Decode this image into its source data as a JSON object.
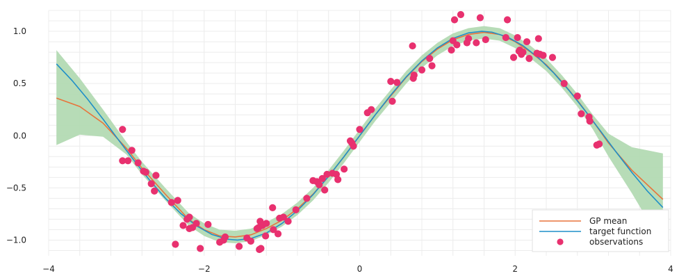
{
  "chart_data": {
    "type": "line",
    "title": "",
    "xlabel": "",
    "ylabel": "",
    "xlim": [
      -4,
      4
    ],
    "ylim": [
      -1.15,
      1.2
    ],
    "x_ticks": [
      -4,
      -2,
      0,
      2,
      4
    ],
    "x_tick_labels": [
      "−4",
      "−2",
      "0",
      "2",
      "4"
    ],
    "y_ticks": [
      -1.0,
      -0.5,
      0.0,
      0.5,
      1.0
    ],
    "y_tick_labels": [
      "−1.0",
      "−0.5",
      "0.0",
      "0.5",
      "1.0"
    ],
    "grid": true,
    "legend_position": "bottom-right",
    "colors": {
      "gp_mean": "#e8743b",
      "target": "#1f8fc8",
      "band": "#b3dab3",
      "observations": "#e8316f"
    },
    "legend": [
      {
        "label": "GP mean",
        "kind": "line",
        "color": "#e8743b"
      },
      {
        "label": "target function",
        "kind": "line",
        "color": "#1f8fc8"
      },
      {
        "label": "observations",
        "kind": "marker",
        "color": "#e8316f"
      }
    ],
    "series": [
      {
        "name": "GP mean",
        "type": "line",
        "x": [
          -3.9,
          -3.6,
          -3.3,
          -3.0,
          -2.8,
          -2.5,
          -2.2,
          -2.0,
          -1.8,
          -1.6,
          -1.4,
          -1.2,
          -1.0,
          -0.8,
          -0.6,
          -0.4,
          -0.2,
          0.0,
          0.2,
          0.4,
          0.6,
          0.8,
          1.0,
          1.2,
          1.4,
          1.6,
          1.8,
          2.0,
          2.2,
          2.4,
          2.6,
          2.8,
          3.0,
          3.2,
          3.5,
          3.9
        ],
        "y": [
          0.36,
          0.28,
          0.12,
          -0.12,
          -0.31,
          -0.56,
          -0.8,
          -0.9,
          -0.96,
          -0.97,
          -0.95,
          -0.89,
          -0.81,
          -0.7,
          -0.56,
          -0.39,
          -0.2,
          0.0,
          0.2,
          0.38,
          0.56,
          0.71,
          0.83,
          0.92,
          0.97,
          0.99,
          0.97,
          0.9,
          0.8,
          0.68,
          0.52,
          0.34,
          0.14,
          -0.07,
          -0.33,
          -0.61
        ]
      },
      {
        "name": "target function",
        "type": "line",
        "x": [
          -3.9,
          -3.7,
          -3.5,
          -3.3,
          -3.1,
          -2.9,
          -2.7,
          -2.5,
          -2.3,
          -2.1,
          -1.9,
          -1.7,
          -1.5708,
          -1.4,
          -1.2,
          -1.0,
          -0.8,
          -0.6,
          -0.4,
          -0.2,
          0.0,
          0.2,
          0.4,
          0.6,
          0.8,
          1.0,
          1.2,
          1.4,
          1.5708,
          1.7,
          1.9,
          2.1,
          2.3,
          2.5,
          2.7,
          2.9,
          3.1,
          3.3,
          3.5,
          3.7,
          3.9
        ],
        "y": [
          0.688,
          0.53,
          0.351,
          0.158,
          -0.042,
          -0.239,
          -0.427,
          -0.598,
          -0.746,
          -0.863,
          -0.946,
          -0.992,
          -1.0,
          -0.985,
          -0.932,
          -0.841,
          -0.717,
          -0.565,
          -0.389,
          -0.199,
          0.0,
          0.199,
          0.389,
          0.565,
          0.717,
          0.841,
          0.932,
          0.985,
          1.0,
          0.992,
          0.946,
          0.863,
          0.746,
          0.598,
          0.427,
          0.239,
          0.042,
          -0.158,
          -0.351,
          -0.53,
          -0.688
        ]
      },
      {
        "name": "",
        "type": "band",
        "x": [
          -3.9,
          -3.6,
          -3.3,
          -3.0,
          -2.8,
          -2.5,
          -2.2,
          -2.0,
          -1.8,
          -1.6,
          -1.4,
          -1.2,
          -1.0,
          -0.8,
          -0.6,
          -0.4,
          -0.2,
          0.0,
          0.2,
          0.4,
          0.6,
          0.8,
          1.0,
          1.2,
          1.4,
          1.6,
          1.8,
          2.0,
          2.2,
          2.4,
          2.6,
          2.8,
          3.0,
          3.2,
          3.5,
          3.9
        ],
        "upper": [
          0.82,
          0.55,
          0.25,
          -0.06,
          -0.25,
          -0.5,
          -0.74,
          -0.84,
          -0.9,
          -0.91,
          -0.89,
          -0.83,
          -0.75,
          -0.64,
          -0.5,
          -0.33,
          -0.14,
          0.06,
          0.26,
          0.44,
          0.62,
          0.77,
          0.89,
          0.98,
          1.03,
          1.05,
          1.03,
          0.96,
          0.86,
          0.74,
          0.58,
          0.4,
          0.2,
          0.02,
          -0.11,
          -0.17
        ],
        "lower": [
          -0.09,
          0.01,
          -0.01,
          -0.18,
          -0.37,
          -0.62,
          -0.86,
          -0.96,
          -1.02,
          -1.03,
          -1.01,
          -0.95,
          -0.87,
          -0.76,
          -0.62,
          -0.45,
          -0.26,
          -0.06,
          0.14,
          0.32,
          0.5,
          0.65,
          0.77,
          0.86,
          0.91,
          0.93,
          0.91,
          0.84,
          0.74,
          0.62,
          0.46,
          0.28,
          0.06,
          -0.2,
          -0.55,
          -1.05
        ]
      },
      {
        "name": "observations",
        "type": "scatter",
        "x": [
          -3.05,
          -3.05,
          -2.98,
          -2.93,
          -2.85,
          -2.78,
          -2.75,
          -2.68,
          -2.64,
          -2.62,
          -2.42,
          -2.37,
          -2.34,
          -2.27,
          -2.22,
          -2.19,
          -2.19,
          -2.15,
          -2.1,
          -2.05,
          -1.95,
          -1.8,
          -1.75,
          -1.73,
          -1.55,
          -1.45,
          -1.4,
          -1.32,
          -1.3,
          -1.29,
          -1.28,
          -1.27,
          -1.25,
          -1.21,
          -1.2,
          -1.12,
          -1.11,
          -1.05,
          -1.03,
          -0.98,
          -0.92,
          -0.82,
          -0.68,
          -0.6,
          -0.55,
          -0.52,
          -0.48,
          -0.45,
          -0.42,
          -0.35,
          -0.3,
          -0.28,
          -0.2,
          -0.12,
          -0.1,
          -0.08,
          0.0,
          0.1,
          0.15,
          0.4,
          0.42,
          0.48,
          0.68,
          0.69,
          0.7,
          0.8,
          0.9,
          0.93,
          1.18,
          1.2,
          1.22,
          1.25,
          1.3,
          1.38,
          1.4,
          1.5,
          1.55,
          1.62,
          1.88,
          1.9,
          1.98,
          2.03,
          2.05,
          2.06,
          2.08,
          2.1,
          2.15,
          2.18,
          2.28,
          2.3,
          2.32,
          2.36,
          2.48,
          2.63,
          2.8,
          2.85,
          2.95,
          2.96,
          3.05,
          3.08
        ],
        "y": [
          0.06,
          -0.24,
          -0.24,
          -0.14,
          -0.26,
          -0.34,
          -0.35,
          -0.46,
          -0.53,
          -0.38,
          -0.64,
          -1.04,
          -0.62,
          -0.86,
          -0.8,
          -0.78,
          -0.89,
          -0.88,
          -0.84,
          -1.08,
          -0.85,
          -1.02,
          -1.0,
          -0.97,
          -1.06,
          -0.98,
          -1.01,
          -0.89,
          -0.88,
          -1.09,
          -0.82,
          -1.08,
          -0.86,
          -0.96,
          -0.84,
          -0.69,
          -0.9,
          -0.94,
          -0.79,
          -0.78,
          -0.82,
          -0.71,
          -0.6,
          -0.43,
          -0.44,
          -0.47,
          -0.41,
          -0.52,
          -0.37,
          -0.36,
          -0.37,
          -0.42,
          -0.32,
          -0.05,
          -0.07,
          -0.1,
          0.06,
          0.22,
          0.25,
          0.52,
          0.33,
          0.51,
          0.86,
          0.55,
          0.58,
          0.63,
          0.74,
          0.67,
          0.82,
          0.91,
          1.11,
          0.87,
          1.16,
          0.89,
          0.93,
          0.89,
          1.13,
          0.92,
          0.94,
          1.11,
          0.75,
          0.94,
          0.81,
          0.82,
          0.78,
          0.8,
          0.9,
          0.74,
          0.79,
          0.93,
          0.78,
          0.77,
          0.75,
          0.5,
          0.38,
          0.21,
          0.18,
          0.14,
          -0.09,
          -0.08
        ]
      }
    ]
  }
}
